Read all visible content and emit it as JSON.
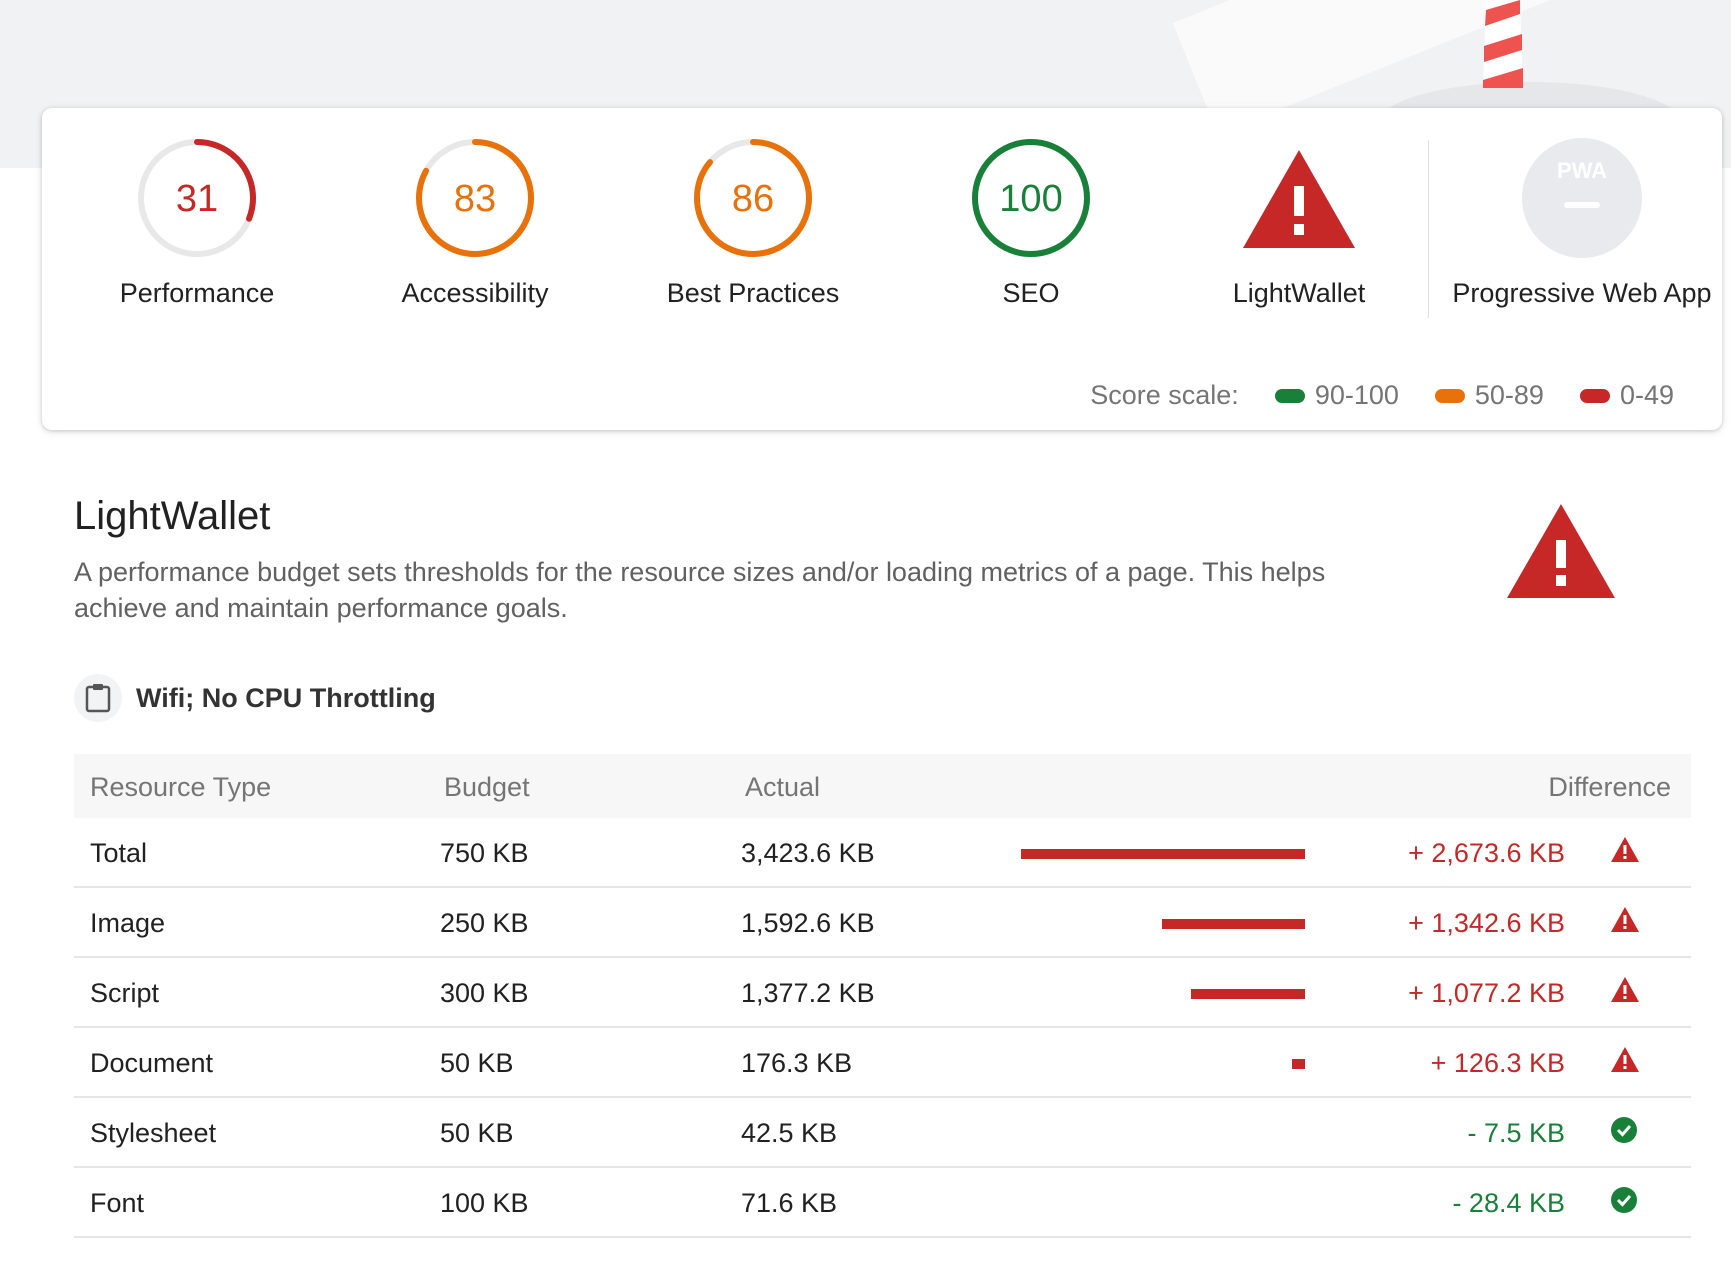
{
  "scores": [
    {
      "label": "Performance",
      "score": "31",
      "fraction": 0.31,
      "color": "#c62828"
    },
    {
      "label": "Accessibility",
      "score": "83",
      "fraction": 0.83,
      "color": "#e8710a"
    },
    {
      "label": "Best Practices",
      "score": "86",
      "fraction": 0.86,
      "color": "#e8710a"
    },
    {
      "label": "SEO",
      "score": "100",
      "fraction": 1.0,
      "color": "#188038"
    }
  ],
  "lightwallet_gauge": {
    "label": "LightWallet",
    "icon": "warning-triangle-icon",
    "color": "#c62828"
  },
  "pwa_gauge": {
    "label": "Progressive Web App",
    "badge_text": "PWA",
    "icon": "pwa-badge-icon"
  },
  "score_scale": {
    "title": "Score scale:",
    "ranges": [
      {
        "label": "90-100",
        "color": "#188038"
      },
      {
        "label": "50-89",
        "color": "#e8710a"
      },
      {
        "label": "0-49",
        "color": "#c62828"
      }
    ]
  },
  "section": {
    "title": "LightWallet",
    "description": "A performance budget sets thresholds for the resource sizes and/or loading metrics of a page. This helps achieve and maintain performance goals."
  },
  "budget_context": {
    "label": "Wifi; No CPU Throttling",
    "icon": "clipboard-icon"
  },
  "table": {
    "headers": {
      "type": "Resource Type",
      "budget": "Budget",
      "actual": "Actual",
      "difference": "Difference"
    },
    "rows": [
      {
        "type": "Total",
        "budget": "750 KB",
        "actual": "3,423.6 KB",
        "difference": "+ 2,673.6 KB",
        "over_fraction": 1.0,
        "status": "over"
      },
      {
        "type": "Image",
        "budget": "250 KB",
        "actual": "1,592.6 KB",
        "difference": "+ 1,342.6 KB",
        "over_fraction": 0.502,
        "status": "over"
      },
      {
        "type": "Script",
        "budget": "300 KB",
        "actual": "1,377.2 KB",
        "difference": "+ 1,077.2 KB",
        "over_fraction": 0.403,
        "status": "over"
      },
      {
        "type": "Document",
        "budget": "50 KB",
        "actual": "176.3 KB",
        "difference": "+ 126.3 KB",
        "over_fraction": 0.047,
        "status": "over"
      },
      {
        "type": "Stylesheet",
        "budget": "50 KB",
        "actual": "42.5 KB",
        "difference": "- 7.5 KB",
        "over_fraction": 0,
        "status": "under"
      },
      {
        "type": "Font",
        "budget": "100 KB",
        "actual": "71.6 KB",
        "difference": "- 28.4 KB",
        "over_fraction": 0,
        "status": "under"
      }
    ]
  }
}
